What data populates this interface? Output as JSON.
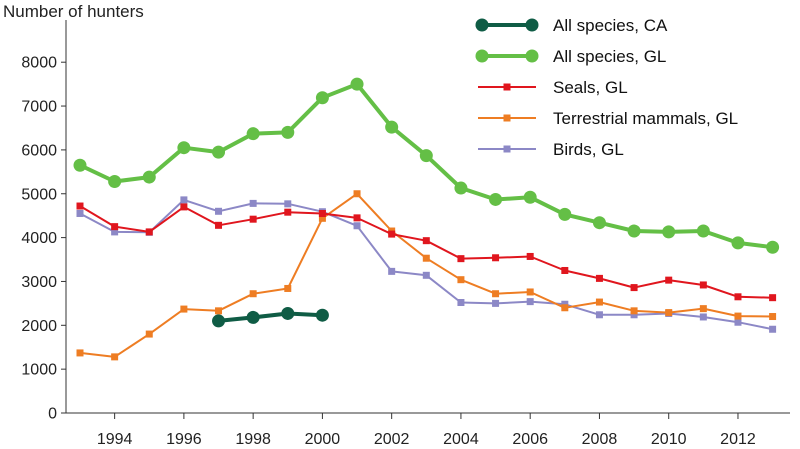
{
  "chart_data": {
    "type": "line",
    "title": "",
    "ylabel": "Number of hunters",
    "xlabel": "",
    "xlim": [
      1992.6,
      2013.7
    ],
    "ylim": [
      0,
      8000
    ],
    "yticks": [
      0,
      1000,
      2000,
      3000,
      4000,
      5000,
      6000,
      7000,
      8000
    ],
    "yticks_labels": [
      "0",
      "1000",
      "2000",
      "3000",
      "4000",
      "5000",
      "6000",
      "7000",
      "8000"
    ],
    "xticks": [
      1994,
      1996,
      1998,
      2000,
      2002,
      2004,
      2006,
      2008,
      2010,
      2012
    ],
    "xticks_labels": [
      "1994",
      "1996",
      "1998",
      "2000",
      "2002",
      "2004",
      "2006",
      "2008",
      "2010",
      "2012"
    ],
    "grid": false,
    "legend_position": "top-right",
    "series": [
      {
        "name": "All species, CA",
        "color": "#0f5c45",
        "marker": "circle",
        "style": "bold",
        "x": [
          1997,
          1998,
          1999,
          2000
        ],
        "values": [
          2100,
          2180,
          2270,
          2230
        ]
      },
      {
        "name": "All species, GL",
        "color": "#64bf46",
        "marker": "circle",
        "style": "bold",
        "x": [
          1993,
          1994,
          1995,
          1996,
          1997,
          1998,
          1999,
          2000,
          2001,
          2002,
          2003,
          2004,
          2005,
          2006,
          2007,
          2008,
          2009,
          2010,
          2011,
          2012,
          2013
        ],
        "values": [
          5650,
          5280,
          5380,
          6050,
          5950,
          6370,
          6400,
          7190,
          7500,
          6520,
          5870,
          5130,
          4870,
          4920,
          4530,
          4340,
          4150,
          4130,
          4150,
          3880,
          3780
        ]
      },
      {
        "name": "Seals, GL",
        "color": "#e0161e",
        "marker": "square",
        "style": "normal",
        "x": [
          1993,
          1994,
          1995,
          1996,
          1997,
          1998,
          1999,
          2000,
          2001,
          2002,
          2003,
          2004,
          2005,
          2006,
          2007,
          2008,
          2009,
          2010,
          2011,
          2012,
          2013
        ],
        "values": [
          4720,
          4250,
          4130,
          4700,
          4280,
          4420,
          4580,
          4550,
          4450,
          4080,
          3930,
          3520,
          3540,
          3570,
          3250,
          3070,
          2860,
          3030,
          2920,
          2650,
          2630
        ]
      },
      {
        "name": "Terrestrial mammals, GL",
        "color": "#ee7d23",
        "marker": "square",
        "style": "normal",
        "x": [
          1993,
          1994,
          1995,
          1996,
          1997,
          1998,
          1999,
          2000,
          2001,
          2002,
          2003,
          2004,
          2005,
          2006,
          2007,
          2008,
          2009,
          2010,
          2011,
          2012,
          2013
        ],
        "values": [
          1370,
          1280,
          1800,
          2370,
          2330,
          2720,
          2840,
          4440,
          5000,
          4150,
          3530,
          3040,
          2720,
          2760,
          2400,
          2530,
          2330,
          2290,
          2380,
          2210,
          2200
        ]
      },
      {
        "name": "Birds, GL",
        "color": "#8c88c6",
        "marker": "square",
        "style": "normal",
        "x": [
          1993,
          1994,
          1995,
          1996,
          1997,
          1998,
          1999,
          2000,
          2001,
          2002,
          2003,
          2004,
          2005,
          2006,
          2007,
          2008,
          2009,
          2010,
          2011,
          2012,
          2013
        ],
        "values": [
          4550,
          4130,
          4120,
          4860,
          4600,
          4780,
          4770,
          4590,
          4270,
          3230,
          3140,
          2520,
          2500,
          2540,
          2480,
          2240,
          2240,
          2270,
          2190,
          2070,
          1910
        ]
      }
    ]
  }
}
